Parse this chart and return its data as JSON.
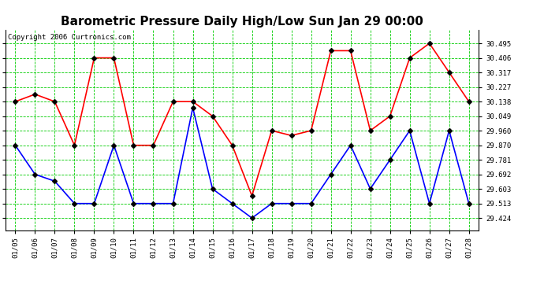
{
  "title": "Barometric Pressure Daily High/Low Sun Jan 29 00:00",
  "copyright": "Copyright 2006 Curtronics.com",
  "dates": [
    "01/05",
    "01/06",
    "01/07",
    "01/08",
    "01/09",
    "01/10",
    "01/11",
    "01/12",
    "01/13",
    "01/14",
    "01/15",
    "01/16",
    "01/17",
    "01/18",
    "01/19",
    "01/20",
    "01/21",
    "01/22",
    "01/23",
    "01/24",
    "01/25",
    "01/26",
    "01/27",
    "01/28"
  ],
  "high": [
    30.138,
    30.183,
    30.138,
    29.87,
    30.406,
    30.406,
    29.87,
    29.87,
    30.138,
    30.138,
    30.049,
    29.87,
    29.56,
    29.96,
    29.93,
    29.96,
    30.45,
    30.45,
    29.96,
    30.049,
    30.406,
    30.495,
    30.317,
    30.138
  ],
  "low": [
    29.87,
    29.692,
    29.65,
    29.513,
    29.513,
    29.87,
    29.513,
    29.513,
    29.513,
    30.1,
    29.603,
    29.513,
    29.424,
    29.513,
    29.513,
    29.513,
    29.692,
    29.87,
    29.603,
    29.781,
    29.96,
    29.513,
    29.96,
    29.513
  ],
  "yticks": [
    29.424,
    29.513,
    29.603,
    29.692,
    29.781,
    29.87,
    29.96,
    30.049,
    30.138,
    30.227,
    30.317,
    30.406,
    30.495
  ],
  "ylim": [
    29.35,
    30.58
  ],
  "high_color": "red",
  "low_color": "blue",
  "grid_color": "#00cc00",
  "bg_color": "white",
  "title_fontsize": 11,
  "marker": "D",
  "markersize": 3
}
